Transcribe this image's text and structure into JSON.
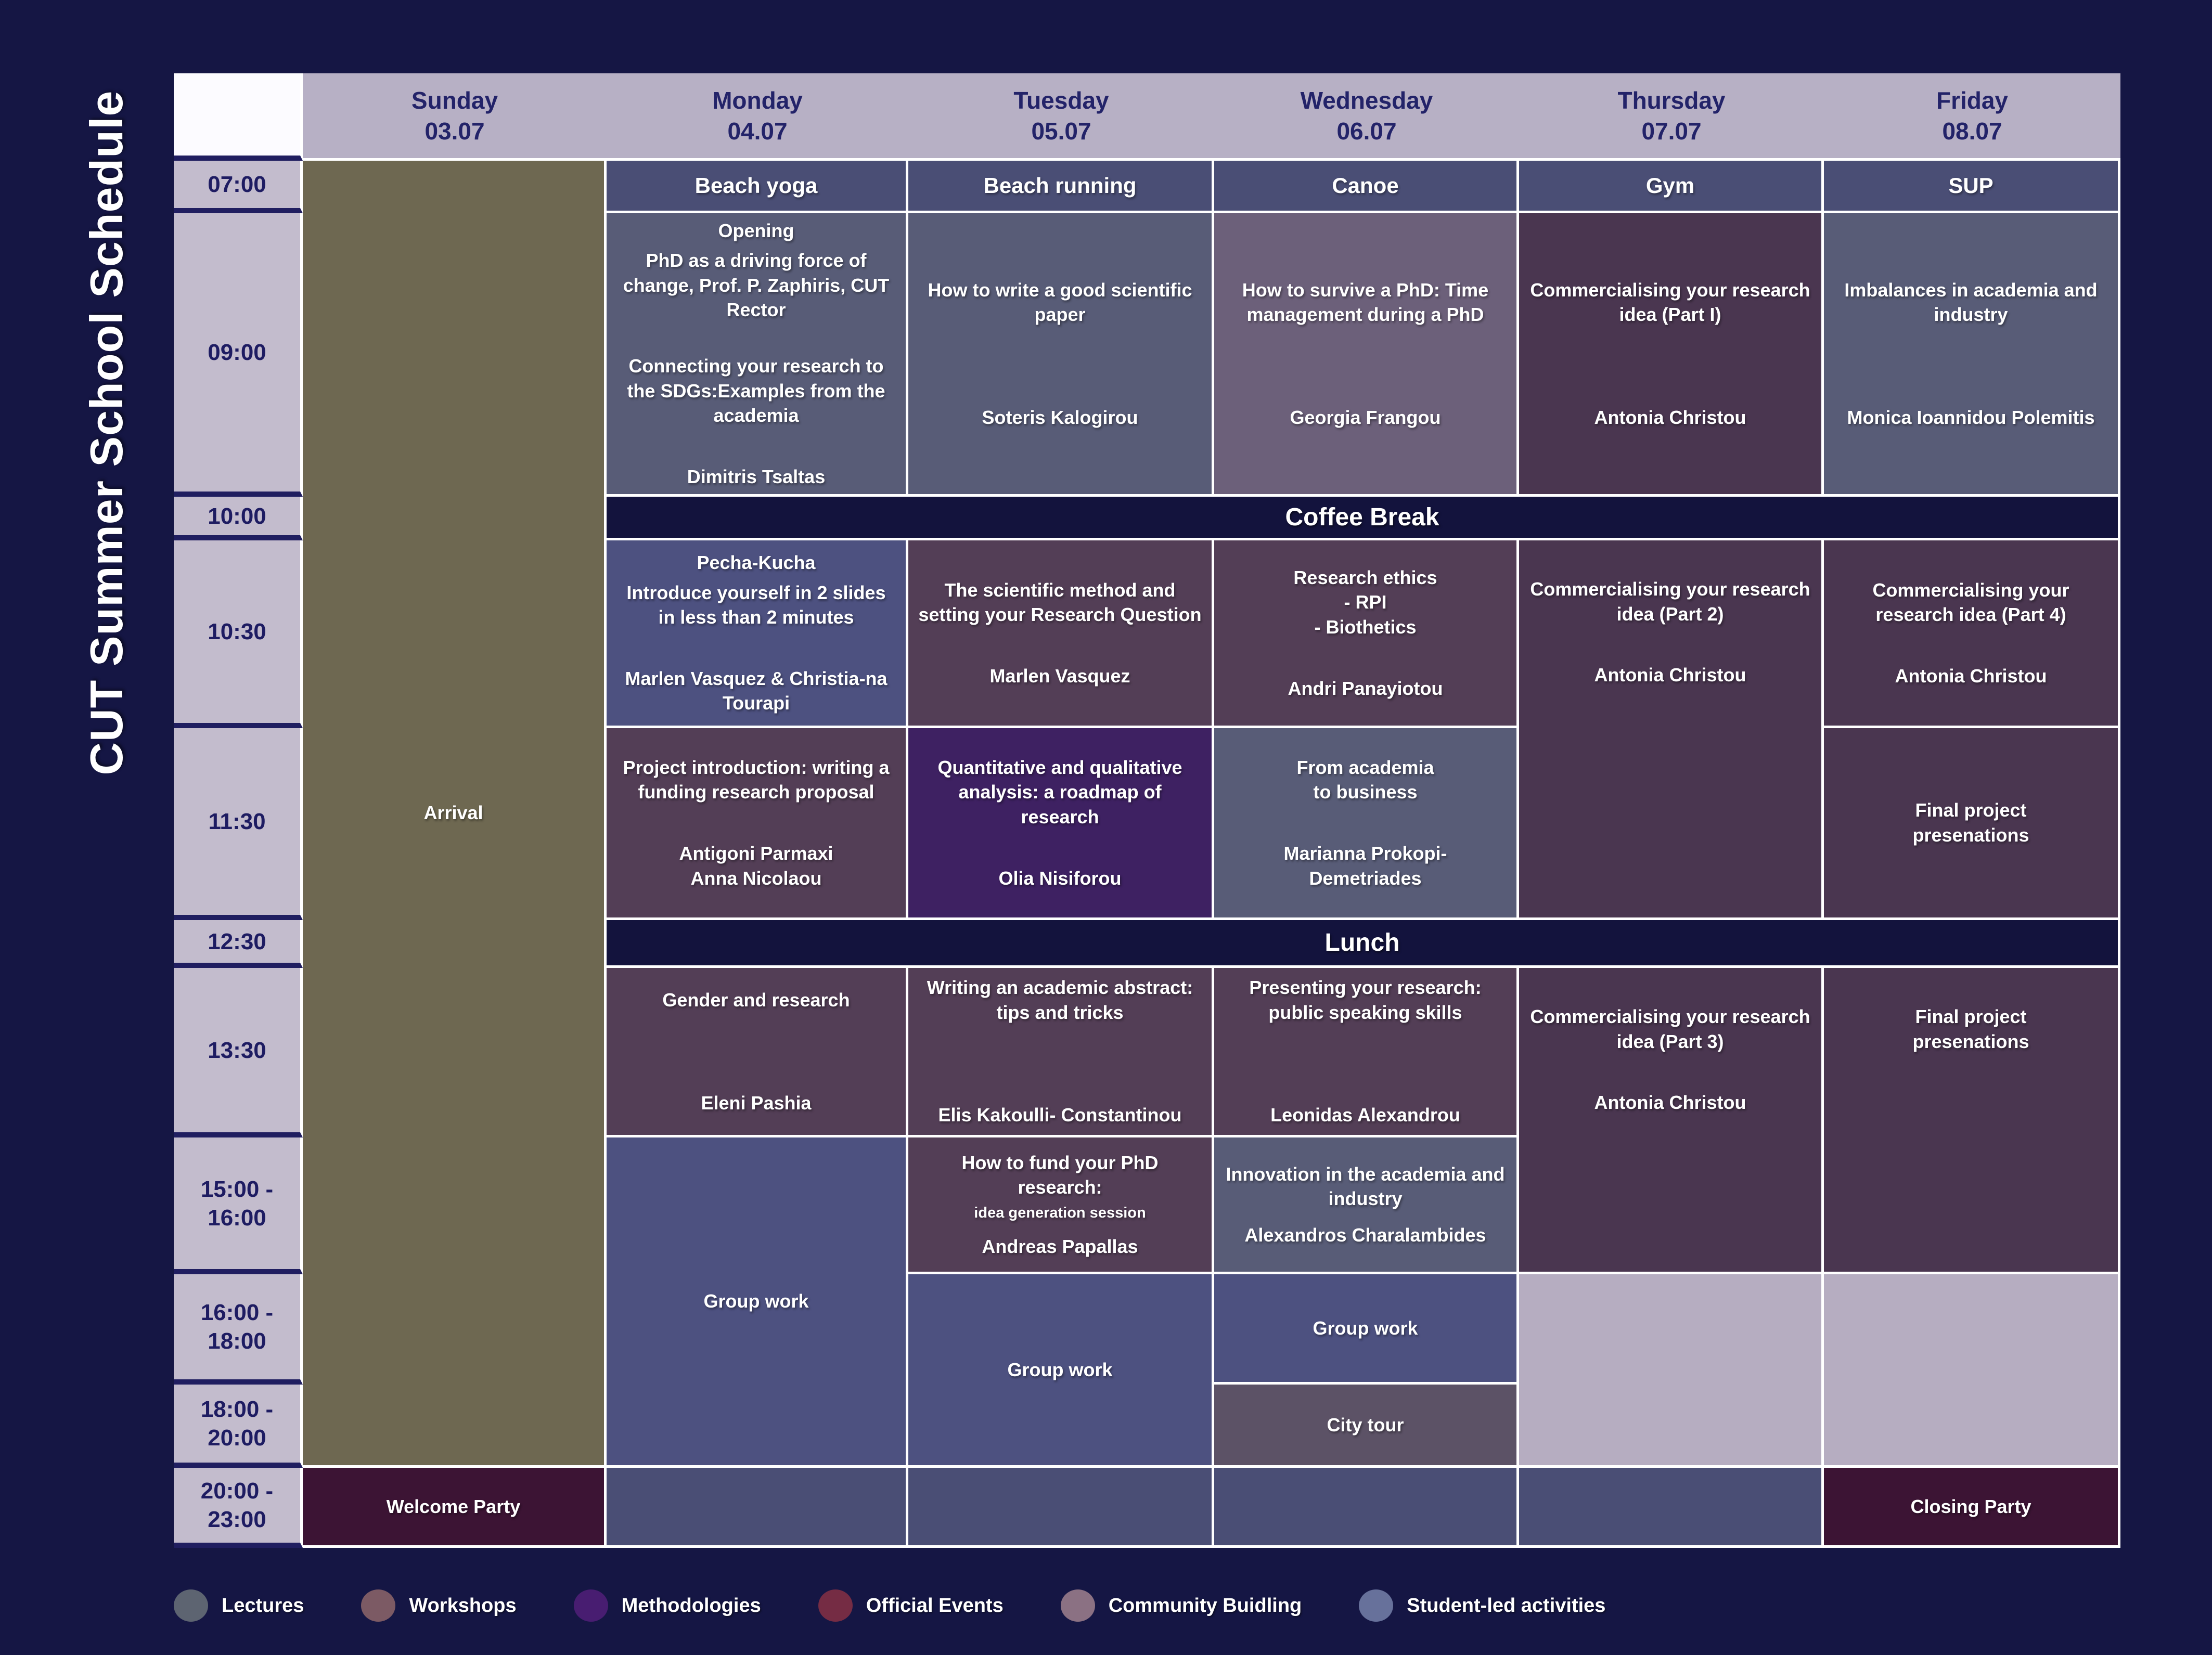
{
  "title": "CUT Summer School Schedule",
  "days": [
    {
      "name": "Sunday",
      "date": "03.07"
    },
    {
      "name": "Monday",
      "date": "04.07"
    },
    {
      "name": "Tuesday",
      "date": "05.07"
    },
    {
      "name": "Wednesday",
      "date": "06.07"
    },
    {
      "name": "Thursday",
      "date": "07.07"
    },
    {
      "name": "Friday",
      "date": "08.07"
    }
  ],
  "times": [
    "07:00",
    "09:00",
    "10:00",
    "10:30",
    "11:30",
    "12:30",
    "13:30",
    "15:00 -\n16:00",
    "16:00 -\n18:00",
    "18:00 -\n20:00",
    "20:00 -\n23:00"
  ],
  "breaks": {
    "coffee": "Coffee Break",
    "lunch": "Lunch"
  },
  "cells": {
    "arrival": {
      "title": "Arrival"
    },
    "welcome_party": {
      "title": "Welcome Party"
    },
    "closing_party": {
      "title": "Closing Party"
    },
    "mon07": {
      "title": "Beach yoga"
    },
    "tue07": {
      "title": "Beach running"
    },
    "wed07": {
      "title": "Canoe"
    },
    "thu07": {
      "title": "Gym"
    },
    "fri07": {
      "title": "SUP"
    },
    "mon09": {
      "heading": "Opening",
      "line1": "PhD as a driving force of change, Prof. P. Zaphiris, CUT Rector",
      "line2": "Connecting your research to the SDGs:Examples from the academia",
      "speaker": "Dimitris Tsaltas"
    },
    "tue09": {
      "title": "How to write a good scientific paper",
      "speaker": "Soteris Kalogirou"
    },
    "wed09": {
      "title": "How to survive a PhD: Time management during a PhD",
      "speaker": "Georgia Frangou"
    },
    "thu09": {
      "title": "Commercialising your research idea (Part I)",
      "speaker": "Antonia Christou"
    },
    "fri09": {
      "title": "Imbalances in academia and industry",
      "speaker": "Monica Ioannidou Polemitis"
    },
    "mon1030": {
      "heading": "Pecha-Kucha",
      "title": "Introduce yourself in 2 slides in less than 2 minutes",
      "speaker": "Marlen Vasquez & Christia-na Tourapi"
    },
    "tue1030": {
      "title": "The scientific method and setting your Research Question",
      "speaker": "Marlen Vasquez"
    },
    "wed1030": {
      "title": "Research ethics\n- RPI\n- Biothetics",
      "speaker": "Andri Panayiotou"
    },
    "thu1030": {
      "title": "Commercialising your research idea (Part 2)",
      "speaker": "Antonia Christou"
    },
    "fri1030": {
      "title": "Commercialising your research idea (Part 4)",
      "speaker": "Antonia Christou"
    },
    "mon1130": {
      "title": "Project introduction: writing a funding research proposal",
      "speaker": "Antigoni Parmaxi\nAnna Nicolaou"
    },
    "tue1130": {
      "title": "Quantitative and qualitative analysis: a roadmap of research",
      "speaker": "Olia Nisiforou"
    },
    "wed1130": {
      "title": "From academia\nto business",
      "speaker": "Marianna Prokopi-\nDemetriades"
    },
    "fri1130": {
      "title": "Final project\npresenations"
    },
    "mon1330": {
      "title": "Gender and research",
      "speaker": "Eleni Pashia"
    },
    "tue1330": {
      "title": "Writing an academic abstract: tips and tricks",
      "speaker": "Elis Kakoulli- Constantinou"
    },
    "wed1330": {
      "title": "Presenting your research: public speaking skills",
      "speaker": "Leonidas Alexandrou"
    },
    "thu1330": {
      "title": "Commercialising your research idea (Part 3)",
      "speaker": "Antonia Christou"
    },
    "fri1330": {
      "title": "Final project\npresenations"
    },
    "tue15": {
      "title": "How to fund your PhD research:",
      "small": "idea generation session",
      "speaker": "Andreas Papallas"
    },
    "wed15": {
      "title": "Innovation in the academia and industry",
      "speaker": "Alexandros Charalambides"
    },
    "mon_gw": {
      "title": "Group work"
    },
    "tue_gw": {
      "title": "Group work"
    },
    "wed_gw": {
      "title": "Group work"
    },
    "wed_city": {
      "title": "City tour"
    }
  },
  "legend": [
    {
      "label": "Lectures",
      "color": "#5d6471"
    },
    {
      "label": "Workshops",
      "color": "#7c5a64"
    },
    {
      "label": "Methodologies",
      "color": "#481d71"
    },
    {
      "label": "Official Events",
      "color": "#752c44"
    },
    {
      "label": "Community Buidling",
      "color": "#8b7183"
    },
    {
      "label": "Student-led activities",
      "color": "#67719b"
    }
  ]
}
